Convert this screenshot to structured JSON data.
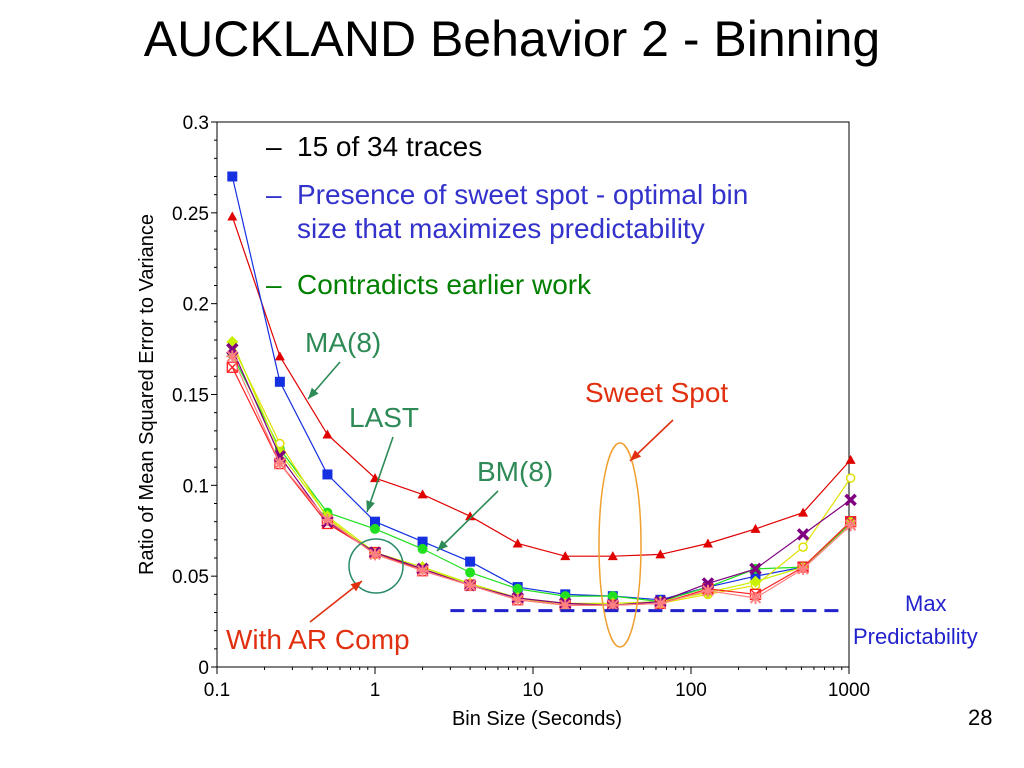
{
  "title": "AUCKLAND Behavior 2 - Binning",
  "page_number": "28",
  "bullets": [
    {
      "dash": "–",
      "lines": [
        "15 of 34 traces"
      ],
      "color": "#000000"
    },
    {
      "dash": "–",
      "lines": [
        "Presence of sweet spot - optimal bin",
        "size that maximizes predictability"
      ],
      "color": "#3333cc"
    },
    {
      "dash": "–",
      "lines": [
        "Contradicts earlier work"
      ],
      "color": "#008000"
    }
  ],
  "annotations": {
    "ma8": "MA(8)",
    "last": "LAST",
    "bm8": "BM(8)",
    "sweet_spot": "Sweet Spot",
    "with_ar_comp": "With AR Comp",
    "max_line1": "Max",
    "max_line2": "Predictability"
  },
  "colors": {
    "annotation_teal": "#2e8b57",
    "annotation_red": "#e03010",
    "max_blue": "#2222cc",
    "sweet_spot_ellipse": "#f0a030",
    "ar_circle": "#2a8a6a"
  },
  "chart_data": {
    "type": "line",
    "xscale": "log",
    "xlim": [
      0.1,
      1000
    ],
    "ylim": [
      0,
      0.3
    ],
    "xticks": [
      {
        "value": 0.1,
        "label": "0.1"
      },
      {
        "value": 1,
        "label": "1"
      },
      {
        "value": 10,
        "label": "10"
      },
      {
        "value": 100,
        "label": "100"
      },
      {
        "value": 1000,
        "label": "1000"
      }
    ],
    "yticks": [
      {
        "value": 0,
        "label": "0"
      },
      {
        "value": 0.05,
        "label": "0.05"
      },
      {
        "value": 0.1,
        "label": "0.1"
      },
      {
        "value": 0.15,
        "label": "0.15"
      },
      {
        "value": 0.2,
        "label": "0.2"
      },
      {
        "value": 0.25,
        "label": "0.25"
      },
      {
        "value": 0.3,
        "label": "0.3"
      }
    ],
    "xlabel": "Bin Size (Seconds)",
    "ylabel": "Ratio of Mean Squared Error to Variance",
    "x": [
      0.125,
      0.25,
      0.5,
      1,
      2,
      4,
      8,
      16,
      32,
      64,
      128,
      256,
      512,
      1024
    ],
    "max_predictability": {
      "y": 0.031,
      "xrange": [
        3,
        1000
      ]
    },
    "series": [
      {
        "key": "ma8",
        "color": "#e00000",
        "marker": "triangle",
        "values": [
          0.248,
          0.171,
          0.128,
          0.104,
          0.095,
          0.083,
          0.068,
          0.061,
          0.061,
          0.062,
          0.068,
          0.076,
          0.085,
          0.114
        ]
      },
      {
        "key": "last",
        "color": "#1530e0",
        "marker": "square",
        "values": [
          0.27,
          0.157,
          0.106,
          0.08,
          0.069,
          0.058,
          0.044,
          0.04,
          0.039,
          0.037,
          0.044,
          0.05,
          0.055,
          0.08
        ]
      },
      {
        "key": "bm8",
        "color": "#20e020",
        "marker": "circle",
        "values": [
          0.172,
          0.12,
          0.085,
          0.076,
          0.065,
          0.052,
          0.043,
          0.039,
          0.039,
          0.036,
          0.044,
          0.054,
          0.055,
          0.079
        ]
      },
      {
        "key": "s4",
        "color": "#e0e000",
        "marker": "circle-open",
        "values": [
          0.177,
          0.123,
          0.082,
          0.062,
          0.054,
          0.046,
          0.038,
          0.034,
          0.034,
          0.035,
          0.04,
          0.045,
          0.066,
          0.104
        ]
      },
      {
        "key": "s5",
        "color": "#c8f000",
        "marker": "diamond",
        "values": [
          0.179,
          0.118,
          0.083,
          0.063,
          0.055,
          0.046,
          0.038,
          0.035,
          0.035,
          0.036,
          0.041,
          0.047,
          0.055,
          0.08
        ]
      },
      {
        "key": "s6",
        "color": "#ff2020",
        "marker": "x-box",
        "values": [
          0.165,
          0.112,
          0.079,
          0.063,
          0.053,
          0.045,
          0.037,
          0.034,
          0.034,
          0.035,
          0.043,
          0.04,
          0.055,
          0.08
        ]
      },
      {
        "key": "s7",
        "color": "#800080",
        "marker": "x",
        "values": [
          0.175,
          0.116,
          0.08,
          0.063,
          0.054,
          0.045,
          0.038,
          0.035,
          0.034,
          0.036,
          0.046,
          0.054,
          0.073,
          0.092
        ]
      },
      {
        "key": "s8",
        "color": "#ff8080",
        "marker": "star",
        "values": [
          0.171,
          0.112,
          0.081,
          0.062,
          0.053,
          0.045,
          0.037,
          0.034,
          0.034,
          0.035,
          0.042,
          0.038,
          0.054,
          0.078
        ]
      }
    ]
  }
}
